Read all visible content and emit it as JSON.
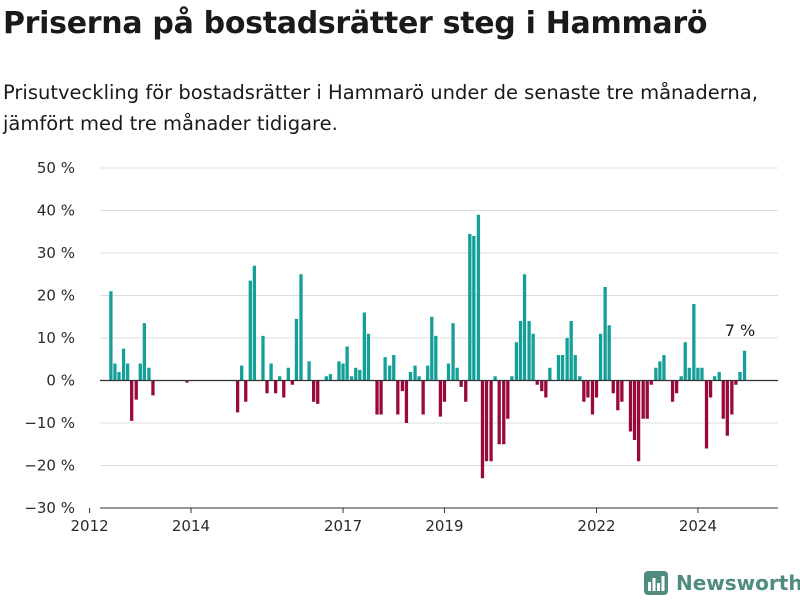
{
  "header": {
    "title": "Priserna på bostadsrätter steg i Hammarö",
    "subtitle": "Prisutveckling för bostadsrätter i Hammarö under de senaste tre månaderna, jämfört med tre månader tidigare."
  },
  "brand": {
    "name": "Newsworthy",
    "icon": "bar-chart-logo-icon",
    "color": "#4f8c7f"
  },
  "colors": {
    "positive": "#14a098",
    "negative": "#990a3c",
    "grid": "#dddddd",
    "axis": "#333333"
  },
  "chart_data": {
    "type": "bar",
    "x_unit": "year",
    "y_unit": "%",
    "ylim": [
      -30,
      50
    ],
    "yticks": [
      -30,
      -20,
      -10,
      0,
      10,
      20,
      30,
      40,
      50
    ],
    "ytick_labels": [
      "−30 %",
      "−20 %",
      "−10 %",
      "0 %",
      "10 %",
      "20 %",
      "30 %",
      "40 %",
      "50 %"
    ],
    "xticks": [
      2012,
      2014,
      2017,
      2019,
      2022,
      2024
    ],
    "xtick_labels": [
      "2012",
      "2014",
      "2017",
      "2019",
      "2022",
      "2024"
    ],
    "xlim": [
      2011.85,
      2025.58
    ],
    "grid": true,
    "annotation": {
      "text": "7 %",
      "x": 2024.83,
      "y": 7
    },
    "series": [
      {
        "values": [
          {
            "x": 2012.42,
            "y": 21
          },
          {
            "x": 2012.5,
            "y": 4
          },
          {
            "x": 2012.58,
            "y": 2
          },
          {
            "x": 2012.67,
            "y": 7.5
          },
          {
            "x": 2012.75,
            "y": 4
          },
          {
            "x": 2012.83,
            "y": -9.5
          },
          {
            "x": 2012.92,
            "y": -4.5
          },
          {
            "x": 2013.0,
            "y": 4
          },
          {
            "x": 2013.08,
            "y": 13.5
          },
          {
            "x": 2013.17,
            "y": 3
          },
          {
            "x": 2013.25,
            "y": -3.5
          },
          {
            "x": 2013.92,
            "y": -0.5
          },
          {
            "x": 2014.92,
            "y": -7.5
          },
          {
            "x": 2015.0,
            "y": 3.5
          },
          {
            "x": 2015.08,
            "y": -5
          },
          {
            "x": 2015.17,
            "y": 23.5
          },
          {
            "x": 2015.25,
            "y": 27
          },
          {
            "x": 2015.33,
            "y": 0
          },
          {
            "x": 2015.42,
            "y": 10.5
          },
          {
            "x": 2015.5,
            "y": -3
          },
          {
            "x": 2015.58,
            "y": 4
          },
          {
            "x": 2015.67,
            "y": -3
          },
          {
            "x": 2015.75,
            "y": 1
          },
          {
            "x": 2015.83,
            "y": -4
          },
          {
            "x": 2015.92,
            "y": 3
          },
          {
            "x": 2016.0,
            "y": -1
          },
          {
            "x": 2016.08,
            "y": 14.5
          },
          {
            "x": 2016.17,
            "y": 25
          },
          {
            "x": 2016.25,
            "y": 0
          },
          {
            "x": 2016.33,
            "y": 4.5
          },
          {
            "x": 2016.42,
            "y": -5
          },
          {
            "x": 2016.5,
            "y": -5.5
          },
          {
            "x": 2016.58,
            "y": 0
          },
          {
            "x": 2016.67,
            "y": 1
          },
          {
            "x": 2016.75,
            "y": 1.5
          },
          {
            "x": 2016.83,
            "y": 0
          },
          {
            "x": 2016.92,
            "y": 4.5
          },
          {
            "x": 2017.0,
            "y": 4
          },
          {
            "x": 2017.08,
            "y": 8
          },
          {
            "x": 2017.17,
            "y": 1
          },
          {
            "x": 2017.25,
            "y": 3
          },
          {
            "x": 2017.33,
            "y": 2.5
          },
          {
            "x": 2017.42,
            "y": 16
          },
          {
            "x": 2017.5,
            "y": 11
          },
          {
            "x": 2017.58,
            "y": 0
          },
          {
            "x": 2017.67,
            "y": -8
          },
          {
            "x": 2017.75,
            "y": -8
          },
          {
            "x": 2017.83,
            "y": 5.5
          },
          {
            "x": 2017.92,
            "y": 3.5
          },
          {
            "x": 2018.0,
            "y": 6
          },
          {
            "x": 2018.08,
            "y": -8
          },
          {
            "x": 2018.17,
            "y": -2.5
          },
          {
            "x": 2018.25,
            "y": -10
          },
          {
            "x": 2018.33,
            "y": 2
          },
          {
            "x": 2018.42,
            "y": 3.5
          },
          {
            "x": 2018.5,
            "y": 1
          },
          {
            "x": 2018.58,
            "y": -8
          },
          {
            "x": 2018.67,
            "y": 3.5
          },
          {
            "x": 2018.75,
            "y": 15
          },
          {
            "x": 2018.83,
            "y": 10.5
          },
          {
            "x": 2018.92,
            "y": -8.5
          },
          {
            "x": 2019.0,
            "y": -5
          },
          {
            "x": 2019.08,
            "y": 4
          },
          {
            "x": 2019.17,
            "y": 13.5
          },
          {
            "x": 2019.25,
            "y": 3
          },
          {
            "x": 2019.33,
            "y": -1.5
          },
          {
            "x": 2019.42,
            "y": -5
          },
          {
            "x": 2019.5,
            "y": 34.5
          },
          {
            "x": 2019.58,
            "y": 34
          },
          {
            "x": 2019.67,
            "y": 39
          },
          {
            "x": 2019.75,
            "y": -23
          },
          {
            "x": 2019.83,
            "y": -19
          },
          {
            "x": 2019.92,
            "y": -19
          },
          {
            "x": 2020.0,
            "y": 1
          },
          {
            "x": 2020.08,
            "y": -15
          },
          {
            "x": 2020.17,
            "y": -15
          },
          {
            "x": 2020.25,
            "y": -9
          },
          {
            "x": 2020.33,
            "y": 1
          },
          {
            "x": 2020.42,
            "y": 9
          },
          {
            "x": 2020.5,
            "y": 14
          },
          {
            "x": 2020.58,
            "y": 25
          },
          {
            "x": 2020.67,
            "y": 14
          },
          {
            "x": 2020.75,
            "y": 11
          },
          {
            "x": 2020.83,
            "y": -1
          },
          {
            "x": 2020.92,
            "y": -2.5
          },
          {
            "x": 2021.0,
            "y": -4
          },
          {
            "x": 2021.08,
            "y": 3
          },
          {
            "x": 2021.17,
            "y": 0
          },
          {
            "x": 2021.25,
            "y": 6
          },
          {
            "x": 2021.33,
            "y": 6
          },
          {
            "x": 2021.42,
            "y": 10
          },
          {
            "x": 2021.5,
            "y": 14
          },
          {
            "x": 2021.58,
            "y": 6
          },
          {
            "x": 2021.67,
            "y": 1
          },
          {
            "x": 2021.75,
            "y": -5
          },
          {
            "x": 2021.83,
            "y": -4
          },
          {
            "x": 2021.92,
            "y": -8
          },
          {
            "x": 2022.0,
            "y": -4
          },
          {
            "x": 2022.08,
            "y": 11
          },
          {
            "x": 2022.17,
            "y": 22
          },
          {
            "x": 2022.25,
            "y": 13
          },
          {
            "x": 2022.33,
            "y": -3
          },
          {
            "x": 2022.42,
            "y": -7
          },
          {
            "x": 2022.5,
            "y": -5
          },
          {
            "x": 2022.58,
            "y": 0
          },
          {
            "x": 2022.67,
            "y": -12
          },
          {
            "x": 2022.75,
            "y": -14
          },
          {
            "x": 2022.83,
            "y": -19
          },
          {
            "x": 2022.92,
            "y": -9
          },
          {
            "x": 2023.0,
            "y": -9
          },
          {
            "x": 2023.08,
            "y": -1
          },
          {
            "x": 2023.17,
            "y": 3
          },
          {
            "x": 2023.25,
            "y": 4.5
          },
          {
            "x": 2023.33,
            "y": 6
          },
          {
            "x": 2023.42,
            "y": 0
          },
          {
            "x": 2023.5,
            "y": -5
          },
          {
            "x": 2023.58,
            "y": -3
          },
          {
            "x": 2023.67,
            "y": 1
          },
          {
            "x": 2023.75,
            "y": 9
          },
          {
            "x": 2023.83,
            "y": 3
          },
          {
            "x": 2023.92,
            "y": 18
          },
          {
            "x": 2024.0,
            "y": 3
          },
          {
            "x": 2024.08,
            "y": 3
          },
          {
            "x": 2024.17,
            "y": -16
          },
          {
            "x": 2024.25,
            "y": -4
          },
          {
            "x": 2024.33,
            "y": 1
          },
          {
            "x": 2024.42,
            "y": 2
          },
          {
            "x": 2024.5,
            "y": -9
          },
          {
            "x": 2024.58,
            "y": -13
          },
          {
            "x": 2024.67,
            "y": -8
          },
          {
            "x": 2024.75,
            "y": -1
          },
          {
            "x": 2024.83,
            "y": 2
          },
          {
            "x": 2024.92,
            "y": 7
          }
        ]
      }
    ]
  }
}
